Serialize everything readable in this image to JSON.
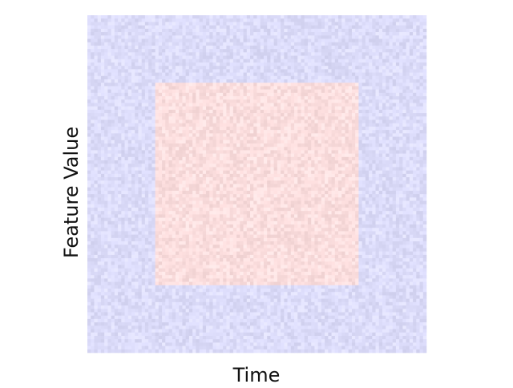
{
  "chart_data": {
    "type": "heatmap",
    "title": "",
    "xlabel": "Time",
    "ylabel": "Feature Value",
    "grid": false,
    "legend": "none",
    "colors": {
      "background_region": "#dcdcfa",
      "inner_region": "#fcdede"
    },
    "regions": [
      {
        "name": "background",
        "value": "low",
        "color": "#dcdcfa"
      },
      {
        "name": "inner-square",
        "value": "high",
        "color": "#fcdede"
      }
    ]
  }
}
